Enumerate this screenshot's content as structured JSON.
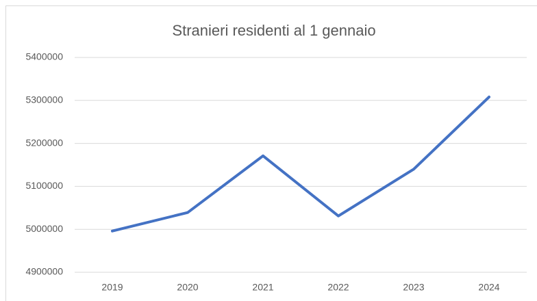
{
  "chart_data": {
    "type": "line",
    "title": "Stranieri residenti al 1 gennaio",
    "categories": [
      "2019",
      "2020",
      "2021",
      "2022",
      "2023",
      "2024"
    ],
    "series": [
      {
        "name": "Stranieri residenti",
        "color": "#4472c4",
        "values": [
          4996000,
          5039000,
          5171000,
          5031000,
          5140000,
          5308000
        ]
      }
    ],
    "ylim": [
      4900000,
      5400000
    ],
    "yticks": [
      4900000,
      5000000,
      5100000,
      5200000,
      5300000,
      5400000
    ],
    "grid": true,
    "legend": false
  }
}
